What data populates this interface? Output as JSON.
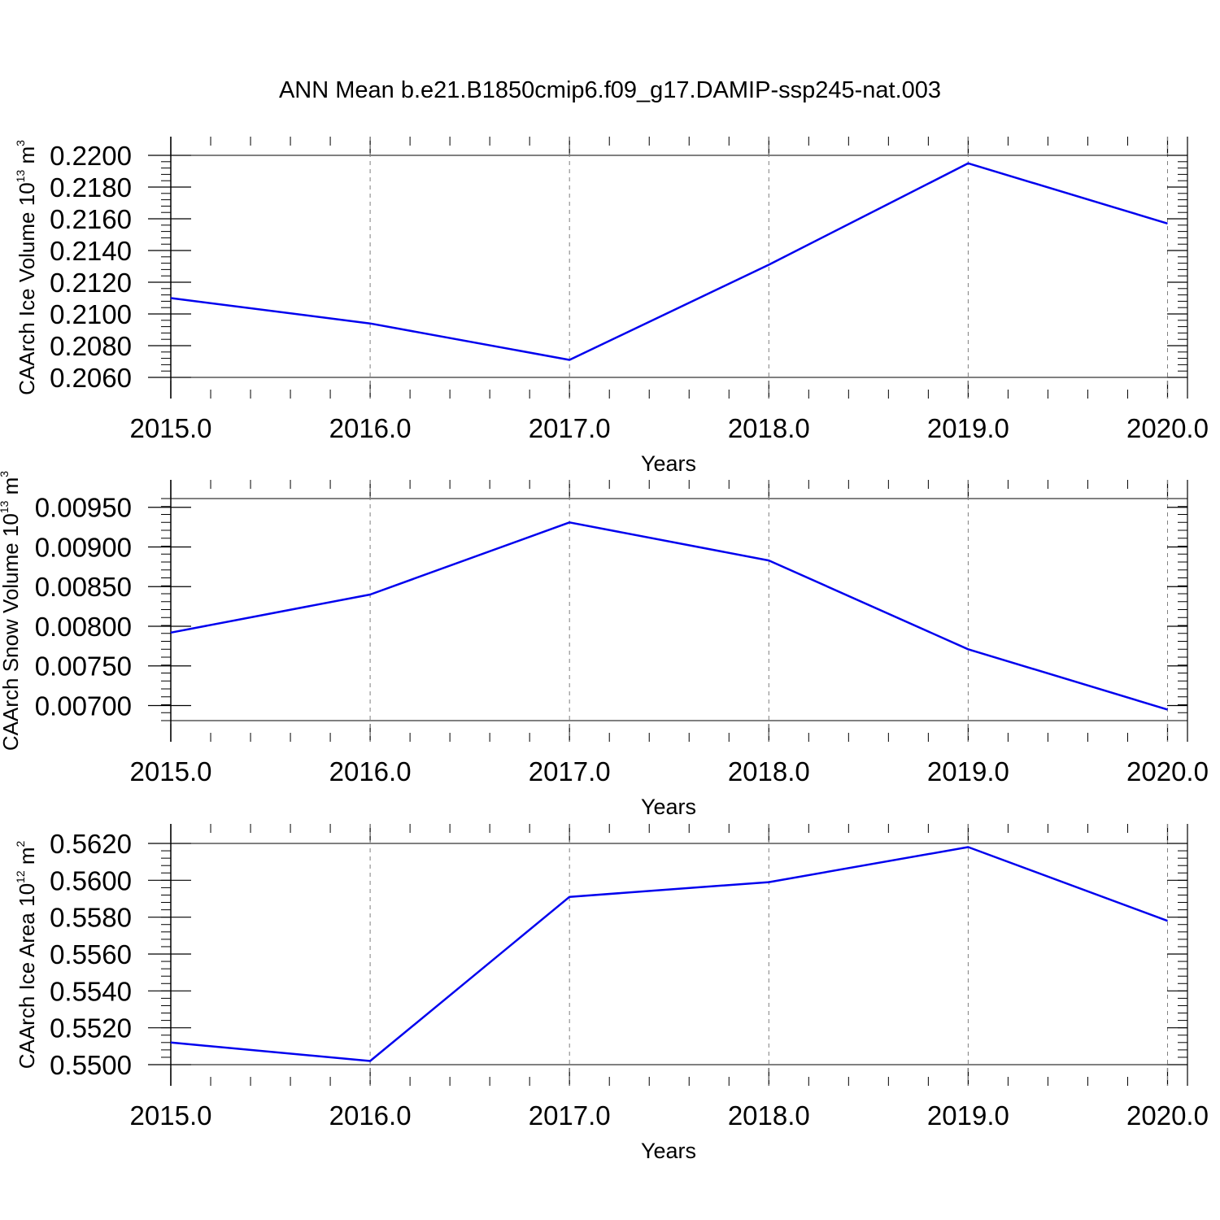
{
  "title": "ANN Mean b.e21.B1850cmip6.f09_g17.DAMIP-ssp245-nat.003",
  "colors": {
    "line": "#0000ee",
    "frame": "#000000",
    "grid": "#7f7f7f"
  },
  "chart_data": [
    {
      "type": "line",
      "title": "",
      "xlabel": "Years",
      "ylabel": {
        "text": "CAArch Ice Volume 10",
        "exponent": "13",
        "unit": " m",
        "unit_exponent": "3"
      },
      "x": [
        2015,
        2016,
        2017,
        2018,
        2019,
        2020
      ],
      "values": [
        0.211,
        0.2094,
        0.2071,
        0.2131,
        0.2195,
        0.2157
      ],
      "xlim": [
        2015,
        2020.1
      ],
      "ylim": [
        0.206,
        0.22
      ],
      "xticks": [
        "2015.0",
        "2016.0",
        "2017.0",
        "2018.0",
        "2019.0",
        "2020.0"
      ],
      "yticks": [
        "0.2060",
        "0.2080",
        "0.2100",
        "0.2120",
        "0.2140",
        "0.2160",
        "0.2180",
        "0.2200"
      ],
      "grid": "vertical dashed at major x ticks"
    },
    {
      "type": "line",
      "title": "",
      "xlabel": "Years",
      "ylabel": {
        "text": "CAArch Snow Volume 10",
        "exponent": "13",
        "unit": " m",
        "unit_exponent": "3"
      },
      "x": [
        2015,
        2016,
        2017,
        2018,
        2019,
        2020
      ],
      "values": [
        0.00792,
        0.0084,
        0.00931,
        0.00883,
        0.00771,
        0.00695
      ],
      "xlim": [
        2015,
        2020.1
      ],
      "ylim": [
        0.00681,
        0.00961
      ],
      "xticks": [
        "2015.0",
        "2016.0",
        "2017.0",
        "2018.0",
        "2019.0",
        "2020.0"
      ],
      "yticks": [
        "0.00700",
        "0.00750",
        "0.00800",
        "0.00850",
        "0.00900",
        "0.00950"
      ],
      "grid": "vertical dashed at major x ticks"
    },
    {
      "type": "line",
      "title": "",
      "xlabel": "Years",
      "ylabel": {
        "text": "CAArch Ice Area 10",
        "exponent": "12",
        "unit": " m",
        "unit_exponent": "2"
      },
      "x": [
        2015,
        2016,
        2017,
        2018,
        2019,
        2020
      ],
      "values": [
        0.5512,
        0.5502,
        0.5591,
        0.5599,
        0.5618,
        0.5578
      ],
      "xlim": [
        2015,
        2020.1
      ],
      "ylim": [
        0.55,
        0.562
      ],
      "xticks": [
        "2015.0",
        "2016.0",
        "2017.0",
        "2018.0",
        "2019.0",
        "2020.0"
      ],
      "yticks": [
        "0.5500",
        "0.5520",
        "0.5540",
        "0.5560",
        "0.5580",
        "0.5600",
        "0.5620"
      ],
      "grid": "vertical dashed at major x ticks"
    }
  ]
}
